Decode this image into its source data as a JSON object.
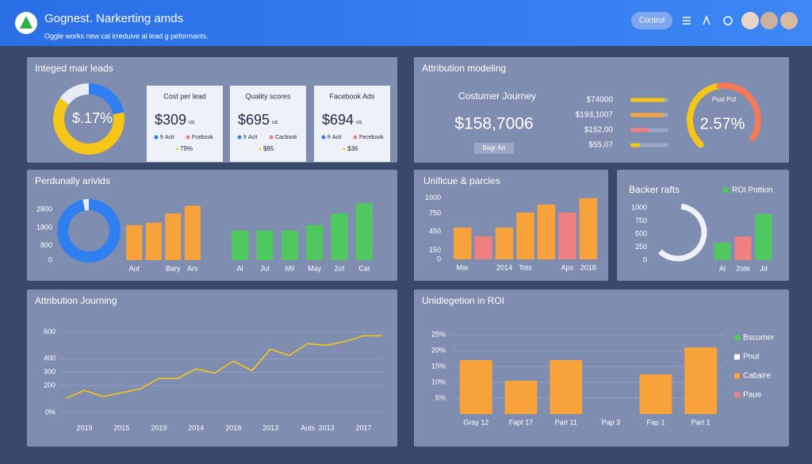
{
  "header": {
    "title": "Gognest. Narkerting amds",
    "subtitle": "Oggle works new cal irreduive al lead g peformants.",
    "button": "Control"
  },
  "leads": {
    "title": "Integed mair leads",
    "donut_label": "$.17%",
    "donut": [
      {
        "value": 22,
        "color": "#2f7ff0"
      },
      {
        "value": 63,
        "color": "#f5c518"
      },
      {
        "value": 15,
        "color": "#e8ecf4"
      }
    ],
    "cards": [
      {
        "title": "Cost per lead",
        "value": "$309",
        "unit": "us",
        "legend": [
          "fr Acit",
          "Fcebook"
        ],
        "note": "79%"
      },
      {
        "title": "Quality scores",
        "value": "$695",
        "unit": "us",
        "legend": [
          "fr Acit",
          "Cacbook"
        ],
        "note": "$85"
      },
      {
        "title": "Facebook Ads",
        "value": "$694",
        "unit": "us",
        "legend": [
          "fr Acit",
          "Fecebook"
        ],
        "note": "$36"
      }
    ]
  },
  "attribution": {
    "title": "Attribution modeling",
    "subtitle": "Costumer Journey",
    "value": "$158,7006",
    "button": "Bagr Art",
    "rows": [
      {
        "label": "$74000",
        "bar": 90,
        "color": "#f5c518"
      },
      {
        "label": "$193,1007",
        "bar": 88,
        "color": "#f4a340"
      },
      {
        "label": "$152,00",
        "bar": 50,
        "color": "#f08080"
      },
      {
        "label": "$55,07",
        "bar": 25,
        "color": "#f5c518"
      }
    ],
    "gauge_title": "Post Pof",
    "gauge_value": "2.57%",
    "gauge": 72
  },
  "activity": {
    "type": "bar",
    "title": "Perdunally arivids",
    "donut": [
      {
        "value": 97,
        "color": "#2f7ff0"
      },
      {
        "value": 3,
        "color": "#e8ecf4"
      }
    ],
    "ylim": [
      0,
      3200
    ],
    "yticks": [
      0,
      800,
      1800,
      2800
    ],
    "groups": [
      {
        "color": "#f7a23b",
        "categories": [
          "Aut",
          null,
          "Bary",
          "Ars"
        ],
        "values": [
          1940,
          2070,
          2580,
          3010
        ]
      },
      {
        "color": "#4fc95f",
        "categories": [
          "Al",
          "Jul",
          "Mil",
          "May",
          "2of",
          "Cat"
        ],
        "values": [
          1640,
          1640,
          1640,
          1940,
          2580,
          3140
        ]
      }
    ]
  },
  "unique": {
    "type": "bar",
    "title": "Unificue & parcles",
    "ylim": [
      0,
      1050
    ],
    "yticks": [
      0,
      150,
      450,
      750,
      1000
    ],
    "categories": [
      "Mar",
      null,
      "2014",
      "Tots",
      null,
      "Aps",
      "2018"
    ],
    "values": [
      520,
      377,
      520,
      766,
      896,
      766,
      1000
    ],
    "colors": [
      "#f7a23b",
      "#f08080",
      "#f7a23b",
      "#f7a23b",
      "#f7a23b",
      "#f08080",
      "#f7a23b"
    ]
  },
  "backer": {
    "type": "bar",
    "title": "Backer rafts",
    "legend": "ROI Pottion",
    "legend_color": "#4fc95f",
    "ylim": [
      0,
      1000
    ],
    "yticks": [
      0,
      250,
      500,
      750,
      1000
    ],
    "categories": [
      "Al",
      "2ote",
      "Jd"
    ],
    "values": [
      330,
      450,
      880
    ],
    "colors": [
      "#4fc95f",
      "#f08080",
      "#4fc95f"
    ]
  },
  "journey": {
    "type": "line",
    "title": "Attribution Journing",
    "color": "#f5c518",
    "grid": true,
    "ylim": [
      0,
      650
    ],
    "yticks": [
      {
        "value": 0,
        "label": "0%"
      },
      200,
      300,
      400,
      600
    ],
    "categories": [
      null,
      "2019",
      null,
      "2015",
      null,
      "2019",
      null,
      "2014",
      null,
      "2018",
      null,
      "2013",
      null,
      "Auts",
      "2013",
      null,
      "2017",
      null
    ],
    "values": [
      106,
      165,
      118,
      147,
      176,
      253,
      253,
      324,
      294,
      382,
      312,
      471,
      424,
      512,
      500,
      529,
      571,
      571
    ]
  },
  "roi": {
    "type": "bar",
    "title": "Unidlegetion in ROI",
    "color": "#f7a23b",
    "grid": true,
    "ylim": [
      0,
      25
    ],
    "yticks": [
      {
        "value": 5,
        "label": "5%"
      },
      {
        "value": 10,
        "label": "10%"
      },
      {
        "value": 15,
        "label": "15%"
      },
      {
        "value": 20,
        "label": "20%"
      },
      {
        "value": 25,
        "label": "25%"
      }
    ],
    "categories": [
      "Gray 12",
      "Fapt 17",
      "Part 11",
      "Pap 3",
      "Fap 1",
      "Part 1"
    ],
    "values": [
      17,
      10.5,
      17,
      null,
      12.5,
      21
    ],
    "legend": [
      {
        "name": "Bscumer",
        "color": "#4fc95f"
      },
      {
        "name": "Pnut",
        "color": "#ffffff"
      },
      {
        "name": "Cabaire",
        "color": "#f7a23b"
      },
      {
        "name": "Paue",
        "color": "#f08080"
      }
    ]
  }
}
